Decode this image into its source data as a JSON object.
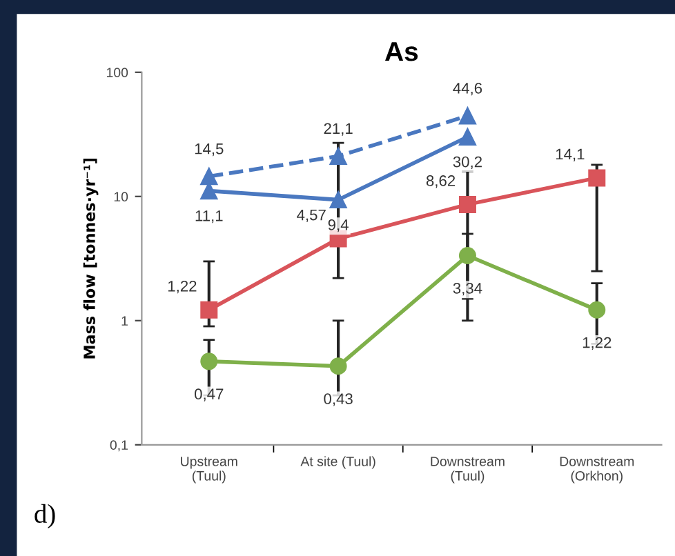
{
  "chart_data": {
    "type": "line",
    "title": "As",
    "ylabel": "Mass flow [tonnes·yr⁻¹]",
    "categories": [
      "Upstream\n(Tuul)",
      "At site (Tuul)",
      "Downstream\n(Tuul)",
      "Downstream\n(Orkhon)"
    ],
    "log": true,
    "ylim": [
      0.1,
      100
    ],
    "yticks": [
      {
        "value": 0.1,
        "label": "0,1"
      },
      1,
      10,
      100
    ],
    "grid": false,
    "legend": false,
    "series": [
      {
        "color": "#4a78c0",
        "marker": "triangle",
        "line_style": "dashed",
        "values": [
          14.5,
          21.1,
          44.6,
          null
        ],
        "value_labels": [
          "14,5",
          "21,1",
          "44,6",
          null
        ]
      },
      {
        "color": "#4a78c0",
        "marker": "triangle",
        "line_style": "solid",
        "values": [
          11.1,
          9.4,
          30.2,
          null
        ],
        "value_labels": [
          "11,1",
          "9,4",
          "30,2",
          null
        ]
      },
      {
        "color": "#d9545a",
        "marker": "square",
        "line_style": "solid",
        "values": [
          1.22,
          4.57,
          8.62,
          14.1
        ],
        "value_labels": [
          "1,22",
          "4,57",
          "8,62",
          "14,1"
        ],
        "errors": [
          [
            0.9,
            3.0
          ],
          [
            2.2,
            27
          ],
          [
            1.5,
            16
          ],
          [
            2.5,
            18
          ]
        ]
      },
      {
        "color": "#7fb04a",
        "marker": "circle",
        "line_style": "solid",
        "values": [
          0.47,
          0.43,
          3.34,
          1.22
        ],
        "value_labels": [
          "0,47",
          "0,43",
          "3,34",
          "1,22"
        ],
        "errors": [
          [
            0.25,
            0.7
          ],
          [
            0.25,
            1.0
          ],
          [
            1.0,
            5.0
          ],
          [
            0.65,
            2.0
          ]
        ]
      }
    ],
    "annotations": [
      "d)"
    ]
  }
}
